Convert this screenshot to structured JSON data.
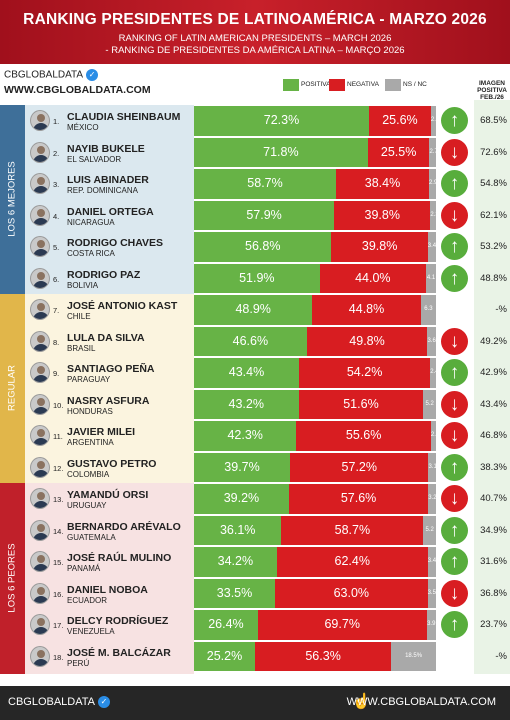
{
  "header": {
    "title": "RANKING PRESIDENTES DE LATINOAMÉRICA - MARZO 2026",
    "subtitle_en": "RANKING OF LATIN AMERICAN PRESIDENTS – MARCH 2026",
    "subtitle_pt": "- RANKING DE PRESIDENTES DA AMÉRICA LATINA – MARÇO 2026"
  },
  "brand": {
    "name": "CBGLOBALDATA",
    "site": "WWW.CBGLOBALDATA.COM"
  },
  "legend": {
    "pos": "POSITIVA",
    "neg": "NEGATIVA",
    "ns": "NS / NC"
  },
  "image_header": "IMAGEN POSITIVA FEB./26",
  "colors": {
    "positive": "#67b346",
    "negative": "#d81d21",
    "ns": "#a9a9a9",
    "header": "#b5151f"
  },
  "groups": [
    {
      "label": "LOS 6 MEJORES",
      "color": "#3e6f99",
      "bg": "#dbe8ef"
    },
    {
      "label": "REGULAR",
      "color": "#e1b64a",
      "bg": "#fbf4df"
    },
    {
      "label": "LOS 6 PEORES",
      "color": "#c0202a",
      "bg": "#f7e2e2"
    }
  ],
  "footer": {
    "left": "CBGLOBALDATA",
    "right": "WWW.CBGLOBALDATA.COM"
  },
  "chart_data": {
    "type": "bar",
    "stacked": true,
    "series_order": [
      "POSITIVA",
      "NEGATIVA",
      "NS / NC"
    ],
    "rows": [
      {
        "rank": "1.",
        "name": "CLAUDIA SHEINBAUM",
        "country": "MÉXICO",
        "pos": 72.3,
        "neg": 25.6,
        "ns": 2.1,
        "pos_label": "72.3%",
        "neg_label": "25.6%",
        "ns_label": "2.1",
        "trend": "up",
        "prev": "68.5%"
      },
      {
        "rank": "2.",
        "name": "NAYIB BUKELE",
        "country": "EL SALVADOR",
        "pos": 71.8,
        "neg": 25.5,
        "ns": 2.7,
        "pos_label": "71.8%",
        "neg_label": "25.5%",
        "ns_label": "2.7",
        "trend": "down",
        "prev": "72.6%"
      },
      {
        "rank": "3.",
        "name": "LUIS ABINADER",
        "country": "REP. DOMINICANA",
        "pos": 58.7,
        "neg": 38.4,
        "ns": 2.9,
        "pos_label": "58.7%",
        "neg_label": "38.4%",
        "ns_label": "2.9",
        "trend": "up",
        "prev": "54.8%"
      },
      {
        "rank": "4.",
        "name": "DANIEL ORTEGA",
        "country": "NICARAGUA",
        "pos": 57.9,
        "neg": 39.8,
        "ns": 2.3,
        "pos_label": "57.9%",
        "neg_label": "39.8%",
        "ns_label": "2.3",
        "trend": "down",
        "prev": "62.1%"
      },
      {
        "rank": "5.",
        "name": "RODRIGO CHAVES",
        "country": "COSTA RICA",
        "pos": 56.8,
        "neg": 39.8,
        "ns": 3.4,
        "pos_label": "56.8%",
        "neg_label": "39.8%",
        "ns_label": "3.4",
        "trend": "up",
        "prev": "53.2%"
      },
      {
        "rank": "6.",
        "name": "RODRIGO PAZ",
        "country": "BOLIVIA",
        "pos": 51.9,
        "neg": 44.0,
        "ns": 4.1,
        "pos_label": "51.9%",
        "neg_label": "44.0%",
        "ns_label": "4.1",
        "trend": "up",
        "prev": "48.8%"
      },
      {
        "rank": "7.",
        "name": "JOSÉ ANTONIO KAST",
        "country": "CHILE",
        "pos": 48.9,
        "neg": 44.8,
        "ns": 6.3,
        "pos_label": "48.9%",
        "neg_label": "44.8%",
        "ns_label": "6.3",
        "trend": "none",
        "prev": "-%"
      },
      {
        "rank": "8.",
        "name": "LULA DA SILVA",
        "country": "BRASIL",
        "pos": 46.6,
        "neg": 49.8,
        "ns": 3.6,
        "pos_label": "46.6%",
        "neg_label": "49.8%",
        "ns_label": "3.6",
        "trend": "down",
        "prev": "49.2%"
      },
      {
        "rank": "9.",
        "name": "SANTIAGO PEÑA",
        "country": "PARAGUAY",
        "pos": 43.4,
        "neg": 54.2,
        "ns": 2.4,
        "pos_label": "43.4%",
        "neg_label": "54.2%",
        "ns_label": "2.4",
        "trend": "up",
        "prev": "42.9%"
      },
      {
        "rank": "10.",
        "name": "NASRY ASFURA",
        "country": "HONDURAS",
        "pos": 43.2,
        "neg": 51.6,
        "ns": 5.2,
        "pos_label": "43.2%",
        "neg_label": "51.6%",
        "ns_label": "5.2",
        "trend": "down",
        "prev": "43.4%"
      },
      {
        "rank": "11.",
        "name": "JAVIER MILEI",
        "country": "ARGENTINA",
        "pos": 42.3,
        "neg": 55.6,
        "ns": 2.1,
        "pos_label": "42.3%",
        "neg_label": "55.6%",
        "ns_label": "2.1",
        "trend": "down",
        "prev": "46.8%"
      },
      {
        "rank": "12.",
        "name": "GUSTAVO PETRO",
        "country": "COLOMBIA",
        "pos": 39.7,
        "neg": 57.2,
        "ns": 3.1,
        "pos_label": "39.7%",
        "neg_label": "57.2%",
        "ns_label": "3.1",
        "trend": "up",
        "prev": "38.3%"
      },
      {
        "rank": "13.",
        "name": "YAMANDÚ ORSI",
        "country": "URUGUAY",
        "pos": 39.2,
        "neg": 57.6,
        "ns": 3.2,
        "pos_label": "39.2%",
        "neg_label": "57.6%",
        "ns_label": "3.2",
        "trend": "down",
        "prev": "40.7%"
      },
      {
        "rank": "14.",
        "name": "BERNARDO ARÉVALO",
        "country": "GUATEMALA",
        "pos": 36.1,
        "neg": 58.7,
        "ns": 5.2,
        "pos_label": "36.1%",
        "neg_label": "58.7%",
        "ns_label": "5.2",
        "trend": "up",
        "prev": "34.9%"
      },
      {
        "rank": "15.",
        "name": "JOSÉ RAÚL MULINO",
        "country": "PANAMÁ",
        "pos": 34.2,
        "neg": 62.4,
        "ns": 3.4,
        "pos_label": "34.2%",
        "neg_label": "62.4%",
        "ns_label": "3.4",
        "trend": "up",
        "prev": "31.6%"
      },
      {
        "rank": "16.",
        "name": "DANIEL NOBOA",
        "country": "ECUADOR",
        "pos": 33.5,
        "neg": 63.0,
        "ns": 3.5,
        "pos_label": "33.5%",
        "neg_label": "63.0%",
        "ns_label": "3.5",
        "trend": "down",
        "prev": "36.8%"
      },
      {
        "rank": "17.",
        "name": "DELCY RODRÍGUEZ",
        "country": "VENEZUELA",
        "pos": 26.4,
        "neg": 69.7,
        "ns": 3.9,
        "pos_label": "26.4%",
        "neg_label": "69.7%",
        "ns_label": "3.9",
        "trend": "up",
        "prev": "23.7%"
      },
      {
        "rank": "18.",
        "name": "JOSÉ M. BALCÁZAR",
        "country": "PERÚ",
        "pos": 25.2,
        "neg": 56.3,
        "ns": 18.5,
        "pos_label": "25.2%",
        "neg_label": "56.3%",
        "ns_label": "18.5%",
        "trend": "none",
        "prev": "-%"
      }
    ]
  }
}
